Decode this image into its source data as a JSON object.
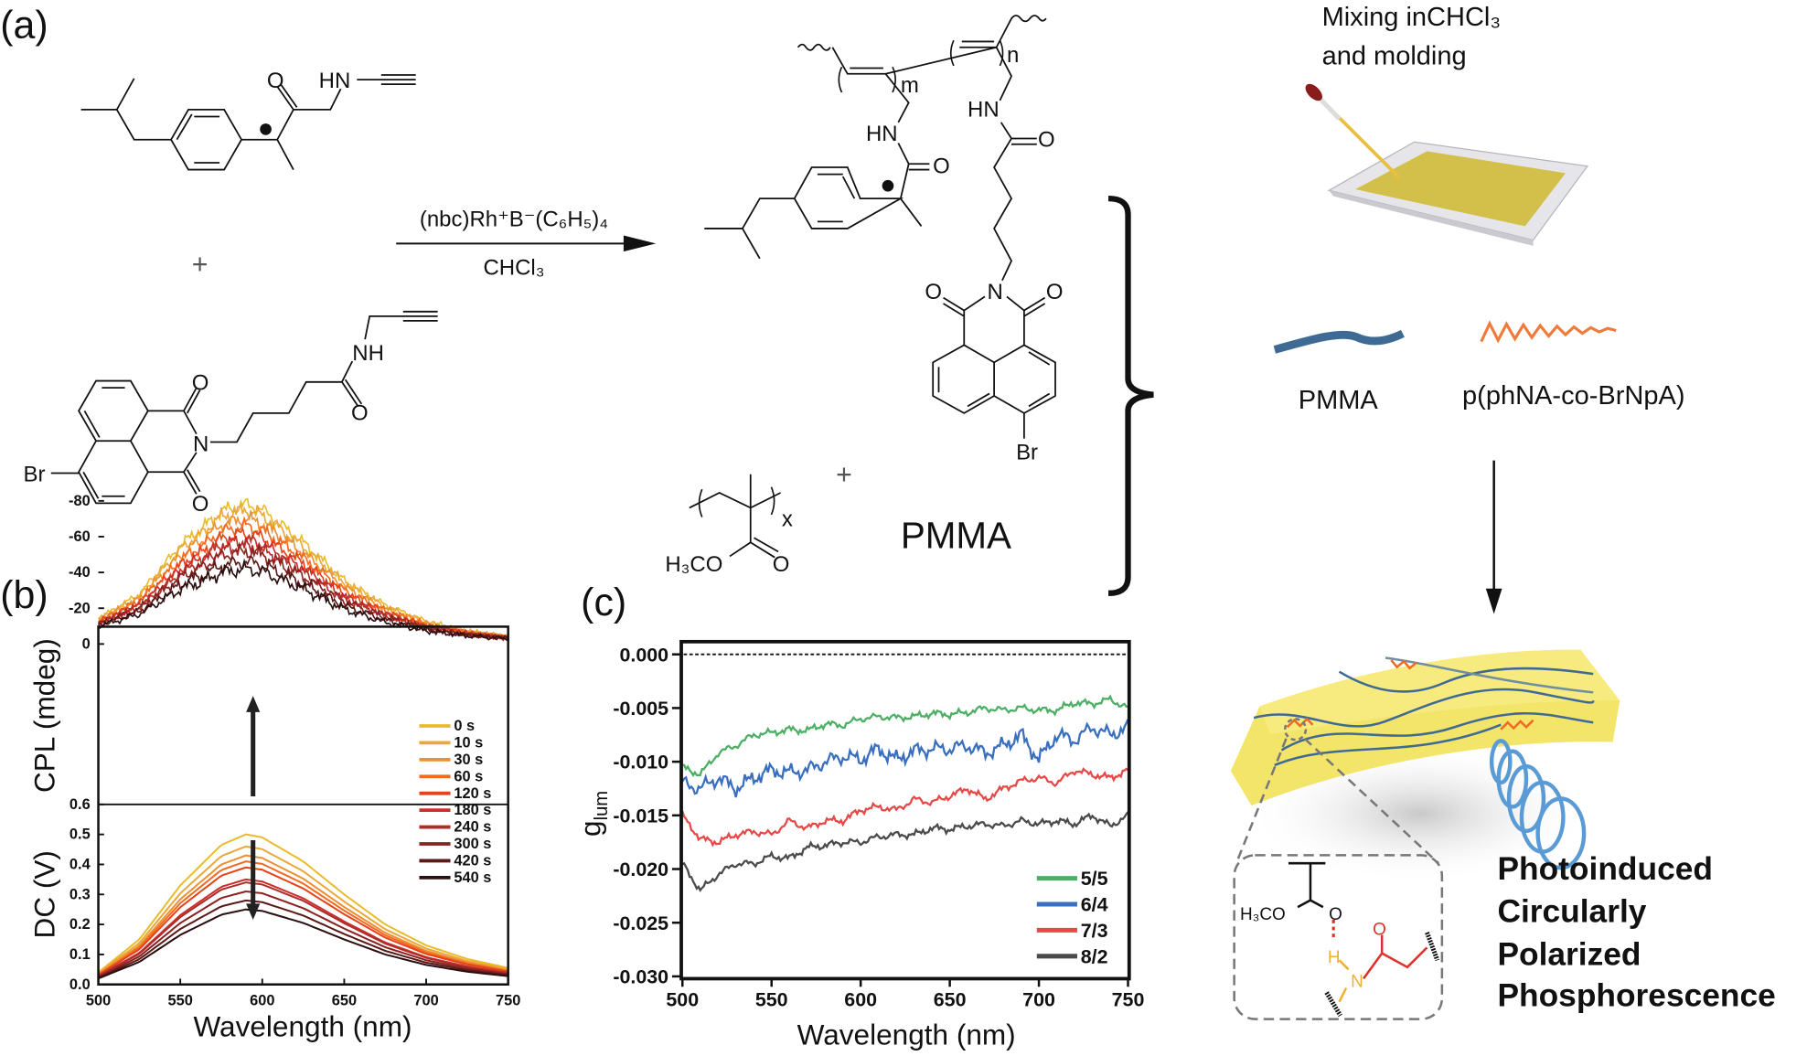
{
  "panel_labels": {
    "a": "(a)",
    "b": "(b)",
    "c": "(c)"
  },
  "scheme": {
    "monomer1": {
      "o": "O",
      "hn": "HN"
    },
    "monomer2": {
      "br": "Br",
      "n": "N",
      "o1": "O",
      "o2": "O",
      "o3": "O",
      "nh": "NH"
    },
    "plus": "+",
    "catalyst": "(nbc)Rh⁺B⁻(C₆H₅)₄",
    "solvent": "CHCl₃",
    "product": {
      "hn1": "HN",
      "hn2": "HN",
      "o1": "O",
      "o2": "O",
      "o3": "O",
      "o4": "O",
      "n": "N",
      "br": "Br",
      "m": "m",
      "n_index": "n"
    },
    "pmma_monomer": {
      "h3co": "H₃CO",
      "o": "O",
      "x": "x",
      "name": "PMMA"
    }
  },
  "process": {
    "step_line1": "Mixing inCHCl₃",
    "step_line2": "and molding",
    "pmma_label": "PMMA",
    "copolymer_label": "p(phNA-co-BrNpA)",
    "inset": {
      "h3co": "H₃CO",
      "o_ester": "O",
      "o_amide": "O",
      "h": "H",
      "n": "N"
    },
    "result_lines": [
      "Photoinduced",
      "Circularly",
      "Polarized",
      "Phosphorescence"
    ]
  },
  "colors": {
    "film_yellow": "#f2e25a",
    "pmma_blue": "#3f6a94",
    "copolymer_orange": "#f07a3a",
    "helix_blue": "#5b9bd5"
  },
  "chart_data": [
    {
      "type": "line",
      "panel": "b-top",
      "xlabel": "Wavelength (nm)",
      "ylabel": "CPL (mdeg)",
      "xlim": [
        500,
        750
      ],
      "ylim": [
        -90,
        10
      ],
      "xticks": [
        "500",
        "550",
        "600",
        "650",
        "700",
        "750"
      ],
      "yticks": [
        "0",
        "-20",
        "-40",
        "-60",
        "-80"
      ],
      "x": [
        500,
        525,
        550,
        575,
        590,
        600,
        625,
        650,
        675,
        700,
        725,
        750
      ],
      "profile": [
        0.11,
        0.3,
        0.68,
        0.95,
        1.0,
        0.96,
        0.72,
        0.44,
        0.26,
        0.14,
        0.07,
        0.03
      ],
      "series": [
        {
          "name": "0 s",
          "min": -78,
          "color": "#e8bc2e"
        },
        {
          "name": "10 s",
          "min": -75,
          "color": "#eaa83a"
        },
        {
          "name": "30 s",
          "min": -70,
          "color": "#ee9032"
        },
        {
          "name": "60 s",
          "min": -66,
          "color": "#f06a22"
        },
        {
          "name": "120 s",
          "min": -62,
          "color": "#e8421a"
        },
        {
          "name": "180 s",
          "min": -58,
          "color": "#c8302a"
        },
        {
          "name": "240 s",
          "min": -55,
          "color": "#b02c2a"
        },
        {
          "name": "300 s",
          "min": -52,
          "color": "#8a2220"
        },
        {
          "name": "420 s",
          "min": -46,
          "color": "#5a1a18"
        },
        {
          "name": "540 s",
          "min": -42,
          "color": "#2a1010"
        }
      ]
    },
    {
      "type": "line",
      "panel": "b-bottom",
      "xlabel": "Wavelength (nm)",
      "ylabel": "DC (V)",
      "xlim": [
        500,
        750
      ],
      "ylim": [
        0.0,
        0.6
      ],
      "yticks": [
        "0.6",
        "0.5",
        "0.4",
        "0.3",
        "0.2",
        "0.1",
        "0.0"
      ],
      "x": [
        500,
        525,
        550,
        575,
        590,
        600,
        625,
        650,
        675,
        700,
        725,
        750
      ],
      "profile": [
        0.08,
        0.3,
        0.66,
        0.93,
        1.0,
        0.98,
        0.82,
        0.6,
        0.4,
        0.26,
        0.17,
        0.11
      ],
      "series": [
        {
          "name": "0 s",
          "peak": 0.5
        },
        {
          "name": "10 s",
          "peak": 0.46
        },
        {
          "name": "30 s",
          "peak": 0.43
        },
        {
          "name": "60 s",
          "peak": 0.41
        },
        {
          "name": "120 s",
          "peak": 0.39
        },
        {
          "name": "180 s",
          "peak": 0.35
        },
        {
          "name": "240 s",
          "peak": 0.34
        },
        {
          "name": "300 s",
          "peak": 0.31
        },
        {
          "name": "420 s",
          "peak": 0.28
        },
        {
          "name": "540 s",
          "peak": 0.25
        }
      ],
      "legend": [
        "0 s",
        "10 s",
        "30 s",
        "60 s",
        "120 s",
        "180 s",
        "240 s",
        "300 s",
        "420 s",
        "540 s"
      ],
      "legend_position": "right"
    },
    {
      "type": "line",
      "panel": "c",
      "xlabel": "Wavelength (nm)",
      "ylabel": "g_lum",
      "ylabel_main": "g",
      "ylabel_sub": "lum",
      "xlim": [
        500,
        750
      ],
      "ylim": [
        -0.03,
        0.0
      ],
      "xticks": [
        "500",
        "550",
        "600",
        "650",
        "700",
        "750"
      ],
      "yticks": [
        "0.000",
        "-0.005",
        "-0.010",
        "-0.015",
        "-0.020",
        "-0.025",
        "-0.030"
      ],
      "reference_line": 0.0,
      "x": [
        500,
        510,
        520,
        530,
        540,
        550,
        560,
        570,
        580,
        590,
        600,
        610,
        620,
        630,
        640,
        650,
        660,
        670,
        680,
        690,
        700,
        710,
        720,
        730,
        740,
        750
      ],
      "series": [
        {
          "name": "5/5",
          "color": "#4caf64",
          "values": [
            -0.0105,
            -0.0112,
            -0.0092,
            -0.0085,
            -0.0075,
            -0.0073,
            -0.007,
            -0.0071,
            -0.0065,
            -0.0066,
            -0.006,
            -0.0058,
            -0.0059,
            -0.0058,
            -0.0055,
            -0.0056,
            -0.0054,
            -0.005,
            -0.0052,
            -0.005,
            -0.0052,
            -0.0052,
            -0.0045,
            -0.0046,
            -0.0042,
            -0.005
          ]
        },
        {
          "name": "6/4",
          "color": "#3a6fbf",
          "values": [
            -0.012,
            -0.0125,
            -0.0115,
            -0.0125,
            -0.0115,
            -0.0108,
            -0.011,
            -0.0108,
            -0.01,
            -0.0095,
            -0.0098,
            -0.0088,
            -0.0098,
            -0.009,
            -0.0088,
            -0.0088,
            -0.0085,
            -0.0092,
            -0.0085,
            -0.0075,
            -0.0098,
            -0.0075,
            -0.008,
            -0.0068,
            -0.0075,
            -0.0068
          ]
        },
        {
          "name": "7/3",
          "color": "#e84848",
          "values": [
            -0.015,
            -0.0172,
            -0.0175,
            -0.0168,
            -0.0165,
            -0.0168,
            -0.0155,
            -0.0162,
            -0.0155,
            -0.0155,
            -0.0145,
            -0.0142,
            -0.0145,
            -0.0135,
            -0.0138,
            -0.0132,
            -0.0125,
            -0.0135,
            -0.0125,
            -0.0118,
            -0.0115,
            -0.012,
            -0.0108,
            -0.0112,
            -0.0115,
            -0.0108
          ]
        },
        {
          "name": "8/2",
          "color": "#4a4a4a",
          "values": [
            -0.0195,
            -0.022,
            -0.0205,
            -0.0195,
            -0.0195,
            -0.0188,
            -0.019,
            -0.018,
            -0.0178,
            -0.0175,
            -0.0175,
            -0.017,
            -0.0168,
            -0.0168,
            -0.0162,
            -0.0163,
            -0.016,
            -0.0158,
            -0.016,
            -0.0155,
            -0.0158,
            -0.0155,
            -0.0158,
            -0.015,
            -0.016,
            -0.015
          ]
        }
      ],
      "legend_position": "bottom-right"
    }
  ]
}
